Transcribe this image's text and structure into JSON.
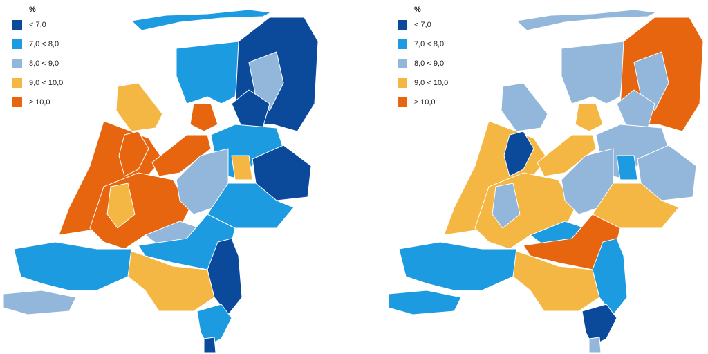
{
  "maps": [
    {
      "legend": {
        "title": "%",
        "items": [
          {
            "label": "< 7,0",
            "color": "#0b4a9b"
          },
          {
            "label": "7,0 < 8,0",
            "color": "#1d9be0"
          },
          {
            "label": "8,0 < 9,0",
            "color": "#93b7da"
          },
          {
            "label": "9,0 < 10,0",
            "color": "#f5b744"
          },
          {
            "label": "≥ 10,0",
            "color": "#e7650f"
          }
        ]
      }
    },
    {
      "legend": {
        "title": "%",
        "items": [
          {
            "label": "< 7,0",
            "color": "#0b4a9b"
          },
          {
            "label": "7,0 < 8,0",
            "color": "#1d9be0"
          },
          {
            "label": "8,0 < 9,0",
            "color": "#93b7da"
          },
          {
            "label": "9,0 < 10,0",
            "color": "#f5b744"
          },
          {
            "label": "≥ 10,0",
            "color": "#e7650f"
          }
        ]
      }
    }
  ]
}
